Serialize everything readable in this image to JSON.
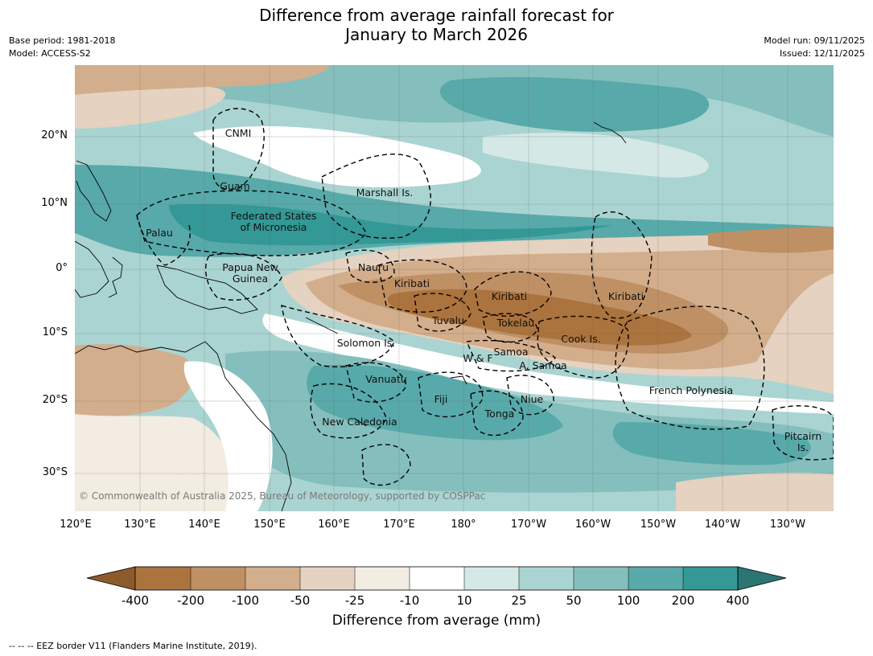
{
  "title": {
    "line1": "Difference from average rainfall forecast for",
    "line2": "January to March 2026"
  },
  "meta": {
    "base_period": "Base period: 1981-2018",
    "model": "Model: ACCESS-S2",
    "model_run": "Model run: 09/11/2025",
    "issued": "Issued: 12/11/2025"
  },
  "axes": {
    "lat_labels": [
      "20°N",
      "10°N",
      "0°",
      "10°S",
      "20°S",
      "30°S"
    ],
    "lon_labels": [
      "120°E",
      "130°E",
      "140°E",
      "150°E",
      "160°E",
      "170°E",
      "180°",
      "170°W",
      "160°W",
      "150°W",
      "140°W",
      "130°W"
    ]
  },
  "places": {
    "cnmi": "CNMI",
    "guam": "Guam",
    "marshall": "Marshall Is.",
    "fsm1": "Federated States",
    "fsm2": "of Micronesia",
    "palau": "Palau",
    "png1": "Papua New",
    "png2": "Guinea",
    "nauru": "Nauru",
    "kiribati_w": "Kiribati",
    "kiribati_c": "Kiribati",
    "kiribati_e": "Kiribati",
    "tuvalu": "Tuvalu",
    "tokelau": "Tokelau",
    "cook": "Cook Is.",
    "solomon": "Solomon Is.",
    "samoa": "Samoa",
    "wf": "W & F",
    "asamoa": "A. Samoa",
    "vanuatu": "Vanuatu",
    "fiji": "Fiji",
    "niue": "Niue",
    "tonga": "Tonga",
    "newcal": "New Caledonia",
    "frpoly": "French Polynesia",
    "pitcairn1": "Pitcairn",
    "pitcairn2": "Is."
  },
  "copyright": "© Commonwealth of Australia 2025, Bureau of Meteorology, supported by COSPPac",
  "colorbar": {
    "ticks": [
      "-400",
      "-200",
      "-100",
      "-50",
      "-25",
      "-10",
      "10",
      "25",
      "50",
      "100",
      "200",
      "400"
    ],
    "colors": {
      "under": "#8c5a2b",
      "b1": "#ab733d",
      "b2": "#bf9064",
      "b3": "#d3ae8c",
      "b4": "#e5d2c0",
      "b5": "#f2ece3",
      "b6": "#ffffff",
      "b7": "#d4e9e6",
      "b8": "#aad4d1",
      "b9": "#84bfbd",
      "b10": "#58a9a9",
      "b11": "#339896",
      "over": "#2c7575"
    },
    "label": "Difference from average (mm)"
  },
  "footnote": "--  --  -- EEZ border V11 (Flanders Marine Institute, 2019)."
}
